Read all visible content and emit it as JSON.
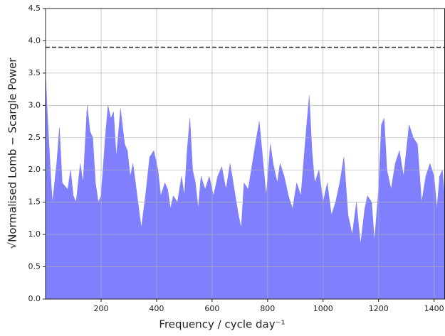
{
  "chart_data": {
    "type": "area",
    "x_label": "Frequency / cycle day⁻¹",
    "y_label": "√Normalised Lomb − Scargle Power",
    "x": [
      0,
      5,
      10,
      20,
      25,
      40,
      50,
      60,
      80,
      90,
      100,
      110,
      125,
      135,
      150,
      160,
      170,
      180,
      190,
      200,
      215,
      225,
      235,
      245,
      255,
      270,
      285,
      295,
      305,
      315,
      330,
      345,
      360,
      375,
      390,
      405,
      415,
      430,
      440,
      450,
      460,
      475,
      490,
      500,
      510,
      520,
      530,
      540,
      550,
      560,
      575,
      590,
      605,
      620,
      635,
      650,
      665,
      680,
      695,
      705,
      715,
      730,
      745,
      760,
      770,
      780,
      795,
      810,
      820,
      835,
      845,
      860,
      875,
      890,
      905,
      920,
      935,
      950,
      960,
      970,
      985,
      1000,
      1015,
      1030,
      1045,
      1060,
      1075,
      1090,
      1105,
      1120,
      1135,
      1150,
      1160,
      1175,
      1185,
      1200,
      1210,
      1220,
      1230,
      1245,
      1260,
      1275,
      1290,
      1310,
      1325,
      1340,
      1355,
      1370,
      1385,
      1400,
      1410,
      1420,
      1430,
      1438
    ],
    "values": [
      3.5,
      3.0,
      2.6,
      1.8,
      1.5,
      2.1,
      2.65,
      1.8,
      1.7,
      2.0,
      1.6,
      1.5,
      2.1,
      1.8,
      3.0,
      2.6,
      2.5,
      1.8,
      1.5,
      1.6,
      2.5,
      3.0,
      2.8,
      2.9,
      2.2,
      2.95,
      2.4,
      2.3,
      1.9,
      2.1,
      1.6,
      1.1,
      1.6,
      2.2,
      2.3,
      2.0,
      1.6,
      1.8,
      1.7,
      1.4,
      1.6,
      1.5,
      1.9,
      1.6,
      2.3,
      2.8,
      2.0,
      1.8,
      1.4,
      1.9,
      1.7,
      1.9,
      1.6,
      1.9,
      2.05,
      1.7,
      2.1,
      1.7,
      1.3,
      1.1,
      1.8,
      1.7,
      2.1,
      2.5,
      2.75,
      2.3,
      1.6,
      2.4,
      2.1,
      1.8,
      2.1,
      1.9,
      1.6,
      1.4,
      1.8,
      1.6,
      2.4,
      3.15,
      2.3,
      1.8,
      2.0,
      1.5,
      1.8,
      1.3,
      1.5,
      1.8,
      2.2,
      1.3,
      1.0,
      1.5,
      0.85,
      1.4,
      1.6,
      1.5,
      0.9,
      1.7,
      2.7,
      2.8,
      2.0,
      1.7,
      2.1,
      2.3,
      1.9,
      2.7,
      2.5,
      2.4,
      1.5,
      1.9,
      2.1,
      1.9,
      1.4,
      1.9,
      2.0,
      1.6
    ],
    "color": "#8080ff",
    "threshold": 3.9,
    "xlim": [
      0,
      1438
    ],
    "ylim": [
      0,
      4.5
    ],
    "xticks": [
      200,
      400,
      600,
      800,
      1000,
      1200,
      1400
    ],
    "yticks": [
      {
        "value": 0,
        "label": "0.0"
      },
      0.5,
      {
        "value": 1,
        "label": "1.0"
      },
      1.5,
      {
        "value": 2,
        "label": "2.0"
      },
      2.5,
      {
        "value": 3,
        "label": "3.0"
      },
      3.5,
      {
        "value": 4,
        "label": "4.0"
      },
      4.5
    ],
    "grid": true
  }
}
